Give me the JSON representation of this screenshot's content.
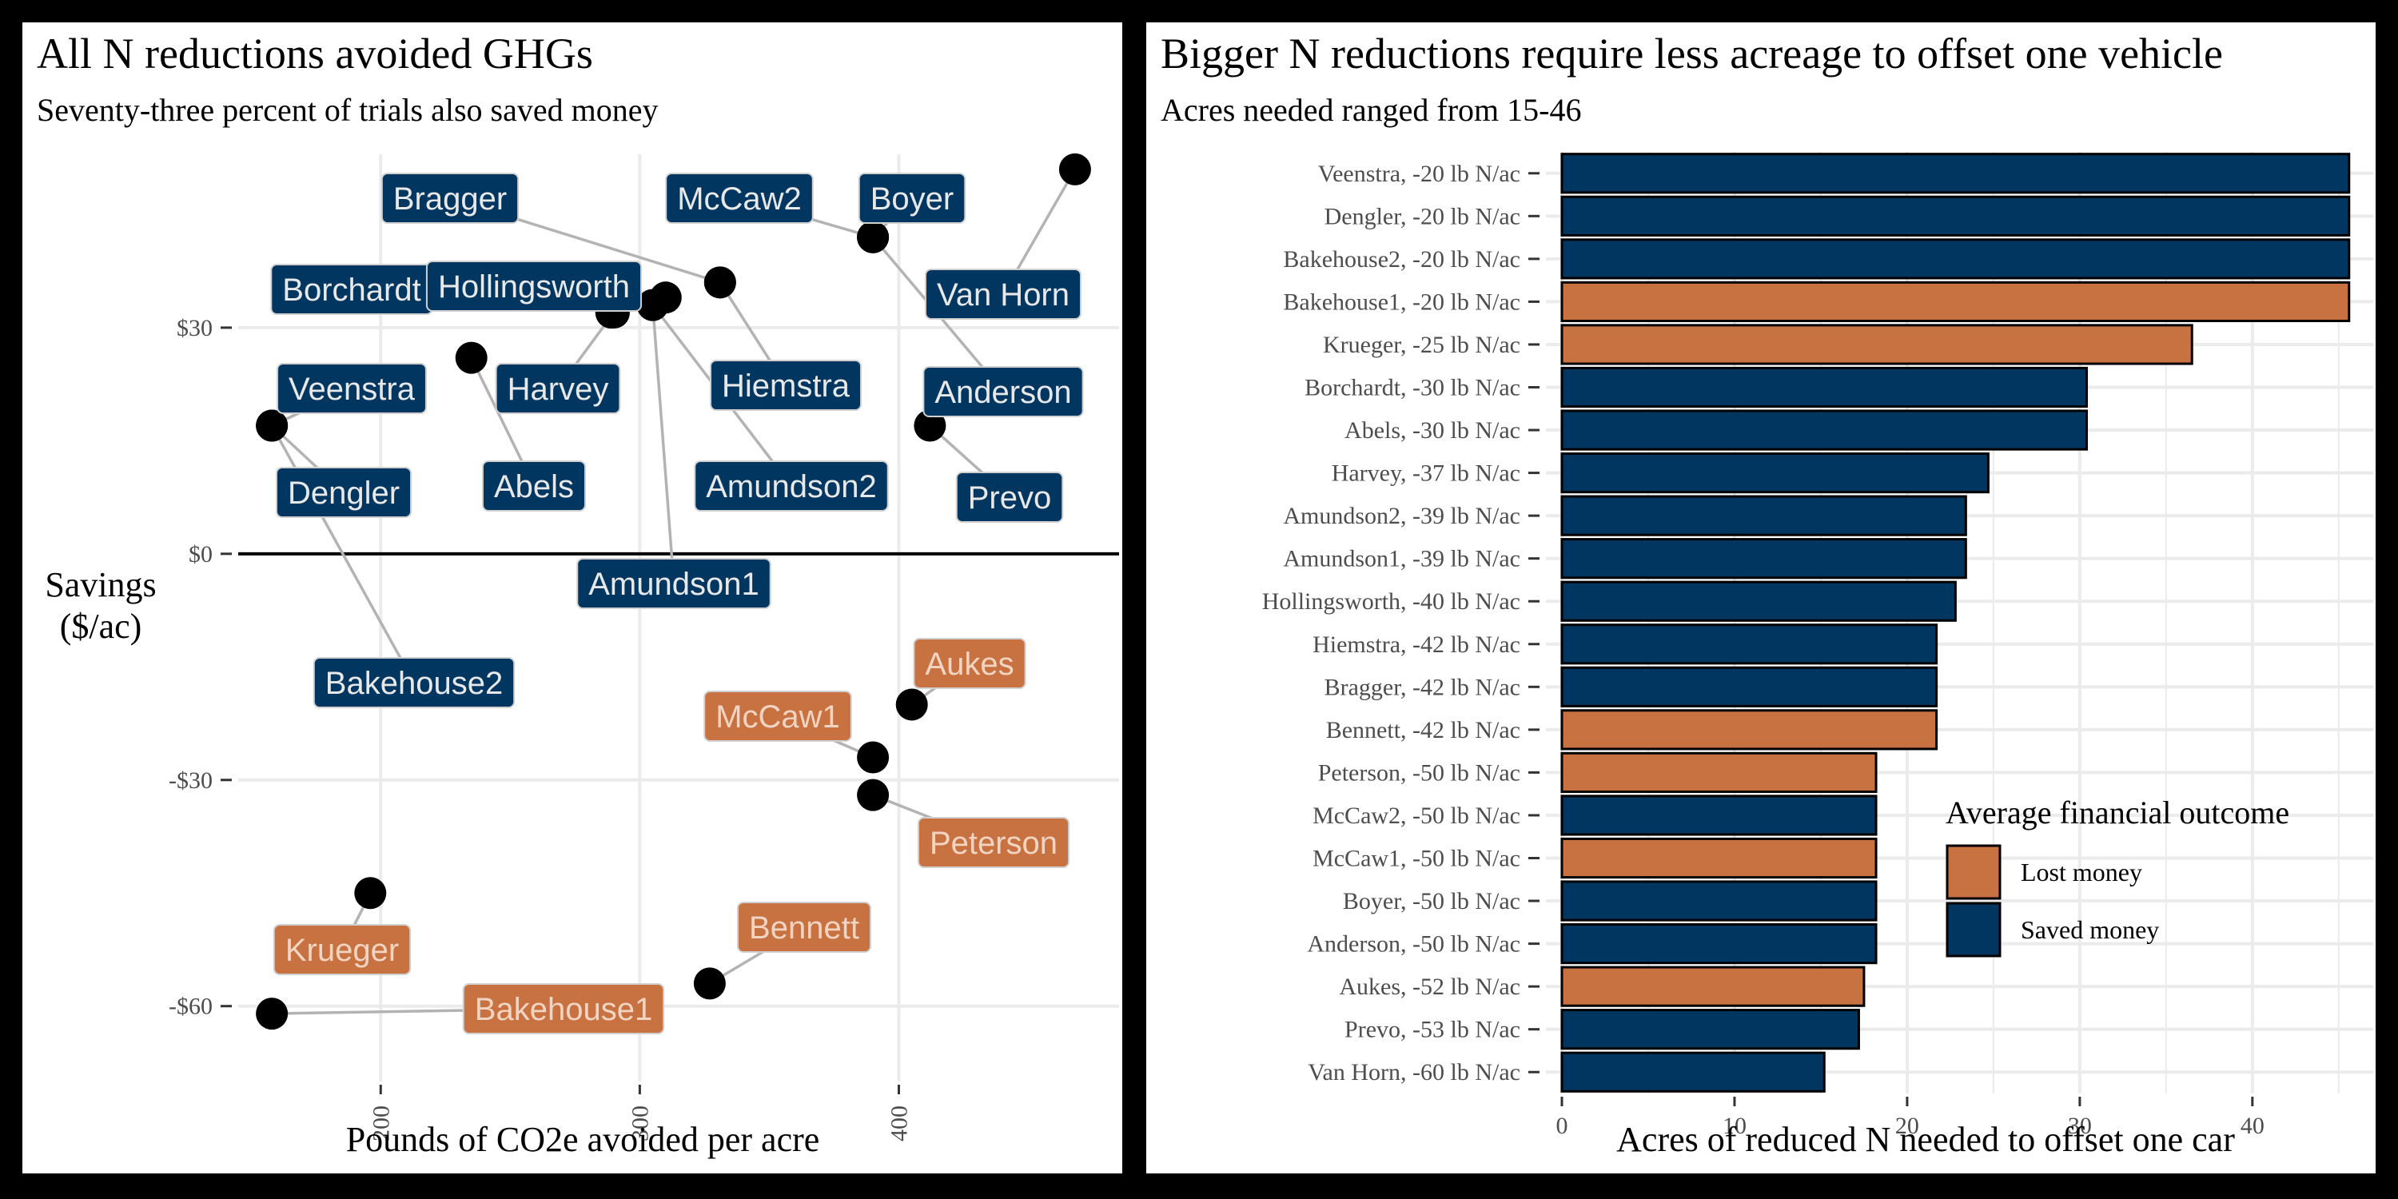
{
  "left_panel": {
    "title": "All N reductions avoided GHGs",
    "subtitle": "Seventy-three percent of trials also saved money"
  },
  "right_panel": {
    "title": "Bigger N reductions require less acreage to offset one vehicle",
    "subtitle": "Acres needed ranged from 15-46"
  },
  "colors": {
    "saved": "#003660",
    "lost": "#C87141",
    "label_text_saved": "#e8e8e8",
    "label_text_lost": "#f2d4c2"
  },
  "chart_data": [
    {
      "type": "scatter",
      "title": "All N reductions avoided GHGs",
      "subtitle": "Seventy-three percent of trials also saved money",
      "xlabel": "Pounds of CO2e avoided per acre",
      "ylabel": "Savings\n($/ac)",
      "xlim": [
        145,
        485
      ],
      "ylim": [
        -70,
        53
      ],
      "x_ticks": [
        200,
        300,
        400
      ],
      "x_tick_labels": [
        "200",
        "300",
        "400"
      ],
      "y_ticks": [
        -60,
        -30,
        0,
        30
      ],
      "y_tick_labels": [
        "-$60",
        "-$30",
        "$0",
        "$30"
      ],
      "grid": true,
      "hline_at": 0,
      "points": [
        {
          "name": "Bragger",
          "x": 331,
          "y": 36,
          "outcome": "saved"
        },
        {
          "name": "McCaw2",
          "x": 390,
          "y": 42,
          "outcome": "saved"
        },
        {
          "name": "Boyer",
          "x": 390,
          "y": 42,
          "outcome": "saved"
        },
        {
          "name": "Van Horn",
          "x": 468,
          "y": 51,
          "outcome": "saved"
        },
        {
          "name": "Borchardt",
          "x": 310,
          "y": 34,
          "outcome": "saved"
        },
        {
          "name": "Hollingsworth",
          "x": 289,
          "y": 32,
          "outcome": "saved"
        },
        {
          "name": "Veenstra",
          "x": 158,
          "y": 17,
          "outcome": "saved"
        },
        {
          "name": "Harvey",
          "x": 290,
          "y": 32,
          "outcome": "saved"
        },
        {
          "name": "Hiemstra",
          "x": 331,
          "y": 36,
          "outcome": "saved"
        },
        {
          "name": "Anderson",
          "x": 390,
          "y": 42,
          "outcome": "saved"
        },
        {
          "name": "Dengler",
          "x": 158,
          "y": 17,
          "outcome": "saved"
        },
        {
          "name": "Abels",
          "x": 235,
          "y": 26,
          "outcome": "saved"
        },
        {
          "name": "Amundson2",
          "x": 305,
          "y": 33,
          "outcome": "saved"
        },
        {
          "name": "Prevo",
          "x": 412,
          "y": 17,
          "outcome": "saved"
        },
        {
          "name": "Amundson1",
          "x": 305,
          "y": 33,
          "outcome": "saved"
        },
        {
          "name": "Bakehouse2",
          "x": 158,
          "y": 17,
          "outcome": "saved"
        },
        {
          "name": "Aukes",
          "x": 405,
          "y": -20,
          "outcome": "lost"
        },
        {
          "name": "McCaw1",
          "x": 390,
          "y": -27,
          "outcome": "lost"
        },
        {
          "name": "Peterson",
          "x": 390,
          "y": -32,
          "outcome": "lost"
        },
        {
          "name": "Krueger",
          "x": 196,
          "y": -45,
          "outcome": "lost"
        },
        {
          "name": "Bennett",
          "x": 327,
          "y": -57,
          "outcome": "lost"
        },
        {
          "name": "Bakehouse1",
          "x": 158,
          "y": -61,
          "outcome": "lost"
        }
      ]
    },
    {
      "type": "bar",
      "orientation": "horizontal",
      "title": "Bigger N reductions require less acreage to offset one vehicle",
      "subtitle": "Acres needed ranged from 15-46",
      "xlabel": "Acres of reduced N needed to offset one car",
      "xlim": [
        0,
        47
      ],
      "x_ticks": [
        0,
        10,
        20,
        30,
        40
      ],
      "grid": true,
      "legend_title": "Average financial outcome",
      "legend_position": "bottom-right",
      "legend": [
        {
          "label": "Lost money",
          "outcome": "lost"
        },
        {
          "label": "Saved money",
          "outcome": "saved"
        }
      ],
      "categories": [
        "Veenstra, -20 lb N/ac",
        "Dengler, -20 lb N/ac",
        "Bakehouse2, -20 lb N/ac",
        "Bakehouse1, -20 lb N/ac",
        "Krueger, -25 lb N/ac",
        "Borchardt, -30 lb N/ac",
        "Abels, -30 lb N/ac",
        "Harvey, -37 lb N/ac",
        "Amundson2, -39 lb N/ac",
        "Amundson1, -39 lb N/ac",
        "Hollingsworth, -40 lb N/ac",
        "Hiemstra, -42 lb N/ac",
        "Bragger, -42 lb N/ac",
        "Bennett, -42 lb N/ac",
        "Peterson, -50 lb N/ac",
        "McCaw2, -50 lb N/ac",
        "McCaw1, -50 lb N/ac",
        "Boyer, -50 lb N/ac",
        "Anderson, -50 lb N/ac",
        "Aukes, -52 lb N/ac",
        "Prevo, -53 lb N/ac",
        "Van Horn, -60 lb N/ac"
      ],
      "values": [
        45.6,
        45.6,
        45.6,
        45.6,
        36.5,
        30.4,
        30.4,
        24.7,
        23.4,
        23.4,
        22.8,
        21.7,
        21.7,
        21.7,
        18.2,
        18.2,
        18.2,
        18.2,
        18.2,
        17.5,
        17.2,
        15.2
      ],
      "outcomes": [
        "saved",
        "saved",
        "saved",
        "lost",
        "lost",
        "saved",
        "saved",
        "saved",
        "saved",
        "saved",
        "saved",
        "saved",
        "saved",
        "lost",
        "lost",
        "saved",
        "lost",
        "saved",
        "saved",
        "lost",
        "saved",
        "saved"
      ]
    }
  ]
}
